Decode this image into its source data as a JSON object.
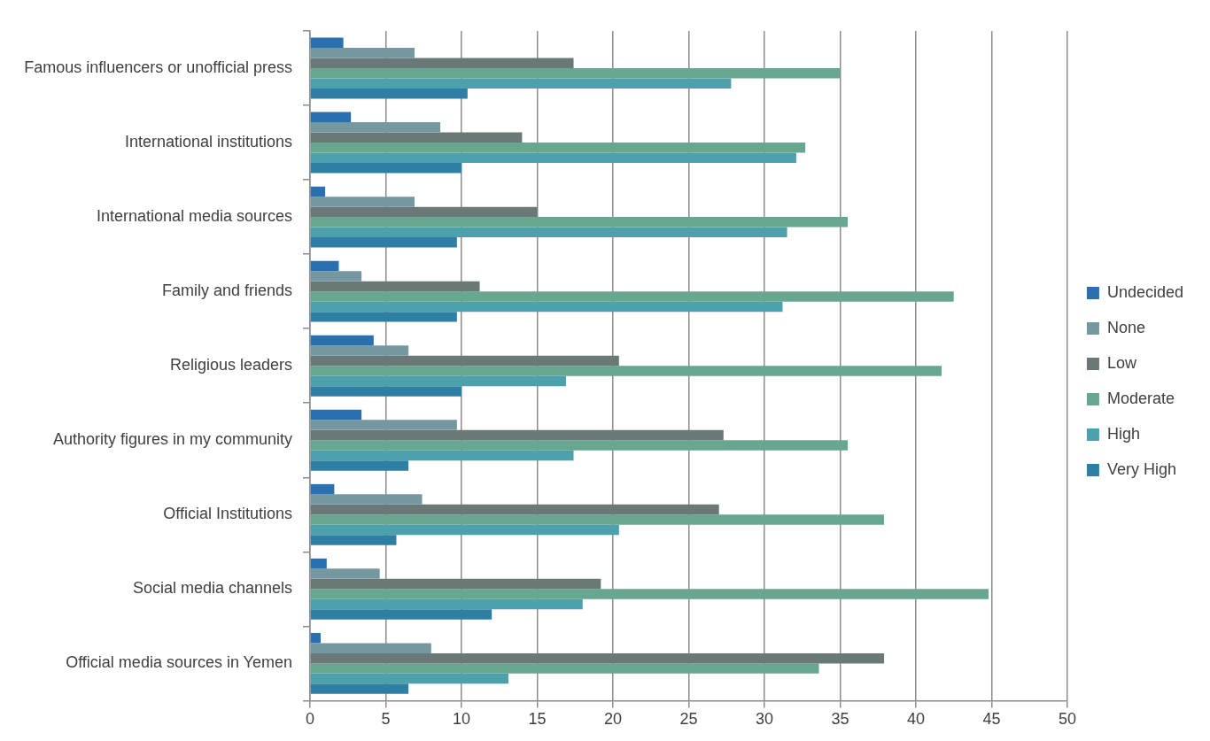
{
  "chart_data": {
    "type": "bar",
    "orientation": "horizontal",
    "categories": [
      "Famous influencers or unofficial press",
      "International institutions",
      "International media sources",
      "Family and friends",
      "Religious leaders",
      "Authority figures in my community",
      "Official Institutions",
      "Social media channels",
      "Official media sources in Yemen"
    ],
    "series": [
      {
        "name": "Undecided",
        "color": "#2a6fb0",
        "values": [
          2.2,
          2.7,
          1.0,
          1.9,
          4.2,
          3.4,
          1.6,
          1.1,
          0.7
        ]
      },
      {
        "name": "None",
        "color": "#7598a0",
        "values": [
          6.9,
          8.6,
          6.9,
          3.4,
          6.5,
          9.7,
          7.4,
          4.6,
          8.0
        ]
      },
      {
        "name": "Low",
        "color": "#6a7878",
        "values": [
          17.4,
          14.0,
          15.0,
          11.2,
          20.4,
          27.3,
          27.0,
          19.2,
          37.9
        ]
      },
      {
        "name": "Moderate",
        "color": "#67a790",
        "values": [
          35.0,
          32.7,
          35.5,
          42.5,
          41.7,
          35.5,
          37.9,
          44.8,
          33.6
        ]
      },
      {
        "name": "High",
        "color": "#4ca1ac",
        "values": [
          27.8,
          32.1,
          31.5,
          31.2,
          16.9,
          17.4,
          20.4,
          18.0,
          13.1
        ]
      },
      {
        "name": "Very High",
        "color": "#2e7fa3",
        "values": [
          10.4,
          10.0,
          9.7,
          9.7,
          10.0,
          6.5,
          5.7,
          12.0,
          6.5
        ]
      }
    ],
    "xlim": [
      0,
      50
    ],
    "xticks": [
      0,
      5,
      10,
      15,
      20,
      25,
      30,
      35,
      40,
      45,
      50
    ],
    "grid": "x",
    "legend": "right"
  }
}
